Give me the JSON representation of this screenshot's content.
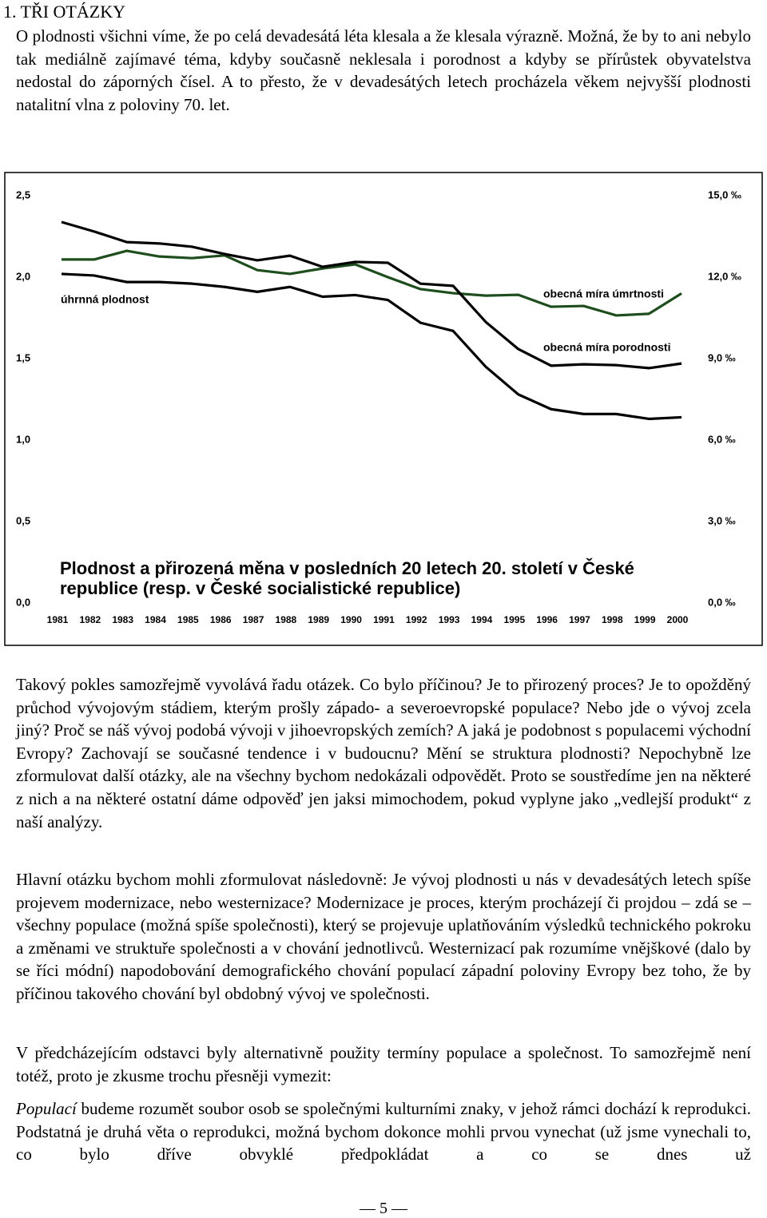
{
  "heading": "1. TŘI OTÁZKY",
  "paragraphs": [
    "O plodnosti všichni víme, že po celá devadesátá léta klesala a že klesala výrazně. Možná, že by to ani nebylo tak mediálně zajímavé téma, kdyby současně neklesala i porodnost a kdyby se přírůstek obyvatelstva nedostal do záporných čísel. A to přesto, že v devadesátých letech procházela věkem nejvyšší plodnosti natalitní vlna z poloviny 70. let.",
    "Takový pokles samozřejmě vyvolává řadu otázek. Co bylo příčinou? Je to přirozený proces? Je to opožděný průchod vývojovým stádiem, kterým prošly západo- a severoevropské populace? Nebo jde o vývoj zcela jiný? Proč se náš vývoj podobá vývoji v jihoevropských zemích? A jaká je podobnost s populacemi východní Evropy? Zachovají se současné tendence i v budoucnu? Mění se struktura plodnosti? Nepochybně lze zformulovat další otázky, ale na všechny bychom nedokázali odpovědět. Proto se soustředíme jen na některé z nich a na některé ostatní dáme odpověď jen jaksi mimochodem, pokud vyplyne jako „vedlejší produkt“ z naší analýzy.",
    "Hlavní otázku bychom mohli zformulovat následovně: Je vývoj plodnosti u nás v devadesátých letech spíše projevem modernizace, nebo westernizace? Modernizace je proces, kterým procházejí či projdou – zdá se – všechny populace (možná spíše společnosti), který se projevuje uplatňováním výsledků technického pokroku a změnami ve struktuře společnosti a v chování jednotlivců. Westernizací pak rozumíme vnějškové (dalo by se říci módní) napodobování demografického chování populací západní poloviny Evropy bez toho, že by příčinou takového chování byl obdobný vývoj ve společnosti.",
    "V předcházejícím odstavci byly alternativně použity termíny populace a společnost. To samozřejmě není totéž, proto je zkusme trochu přesněji vymezit:",
    {
      "em": "Populací",
      "text": " budeme rozumět soubor osob se společnými kulturními znaky, v jehož rámci dochází k reprodukci. Podstatná je druhá věta o reprodukci, možná bychom dokonce mohli prvou vynechat (už jsme vynechali to, co bylo dříve obvyklé předpokládat a co se dnes už"
    }
  ],
  "page_number": "— 5 —",
  "chart_data": {
    "type": "line",
    "title": "Plodnost a přirozená měna v posledních 20 letech 20. století v České republice (resp. v České socialistické republice)",
    "categories": [
      "1981",
      "1982",
      "1983",
      "1984",
      "1985",
      "1986",
      "1987",
      "1988",
      "1989",
      "1990",
      "1991",
      "1992",
      "1993",
      "1994",
      "1995",
      "1996",
      "1997",
      "1998",
      "1999",
      "2000"
    ],
    "ylim": [
      0,
      2.5
    ],
    "yticks": [
      {
        "value": 0,
        "label": "0,0"
      },
      {
        "value": 0.5,
        "label": "0,5"
      },
      {
        "value": 1,
        "label": "1,0"
      },
      {
        "value": 1.5,
        "label": "1,5"
      },
      {
        "value": 2,
        "label": "2,0"
      },
      {
        "value": 2.5,
        "label": "2,5"
      }
    ],
    "y2lim": [
      0,
      15
    ],
    "y2ticks": [
      {
        "value": 0,
        "label": "0,0 ‰"
      },
      {
        "value": 3,
        "label": "3,0 ‰"
      },
      {
        "value": 6,
        "label": "6,0 ‰"
      },
      {
        "value": 9,
        "label": "9,0 ‰"
      },
      {
        "value": 12,
        "label": "12,0 ‰"
      },
      {
        "value": 15,
        "label": "15,0 ‰"
      }
    ],
    "series": [
      {
        "name": "úhrnná plodnost",
        "color": "#000000",
        "values": [
          2.02,
          2.01,
          1.97,
          1.97,
          1.96,
          1.94,
          1.91,
          1.94,
          1.88,
          1.89,
          1.86,
          1.72,
          1.67,
          1.45,
          1.28,
          1.19,
          1.16,
          1.16,
          1.13,
          1.14
        ]
      },
      {
        "name": "obecná míra úmrtnosti",
        "color": "#1e4d1e",
        "axis": "y2",
        "values": [
          12.65,
          12.65,
          12.97,
          12.76,
          12.7,
          12.8,
          12.26,
          12.12,
          12.32,
          12.47,
          12.0,
          11.56,
          11.41,
          11.32,
          11.35,
          10.91,
          10.94,
          10.59,
          10.65,
          11.4
        ]
      },
      {
        "name": "obecná míra porodnosti",
        "color": "#000000",
        "axis": "y2",
        "values": [
          14.03,
          13.68,
          13.29,
          13.24,
          13.12,
          12.85,
          12.62,
          12.79,
          12.38,
          12.56,
          12.53,
          11.76,
          11.68,
          10.35,
          9.35,
          8.74,
          8.79,
          8.76,
          8.65,
          8.82
        ]
      }
    ]
  }
}
